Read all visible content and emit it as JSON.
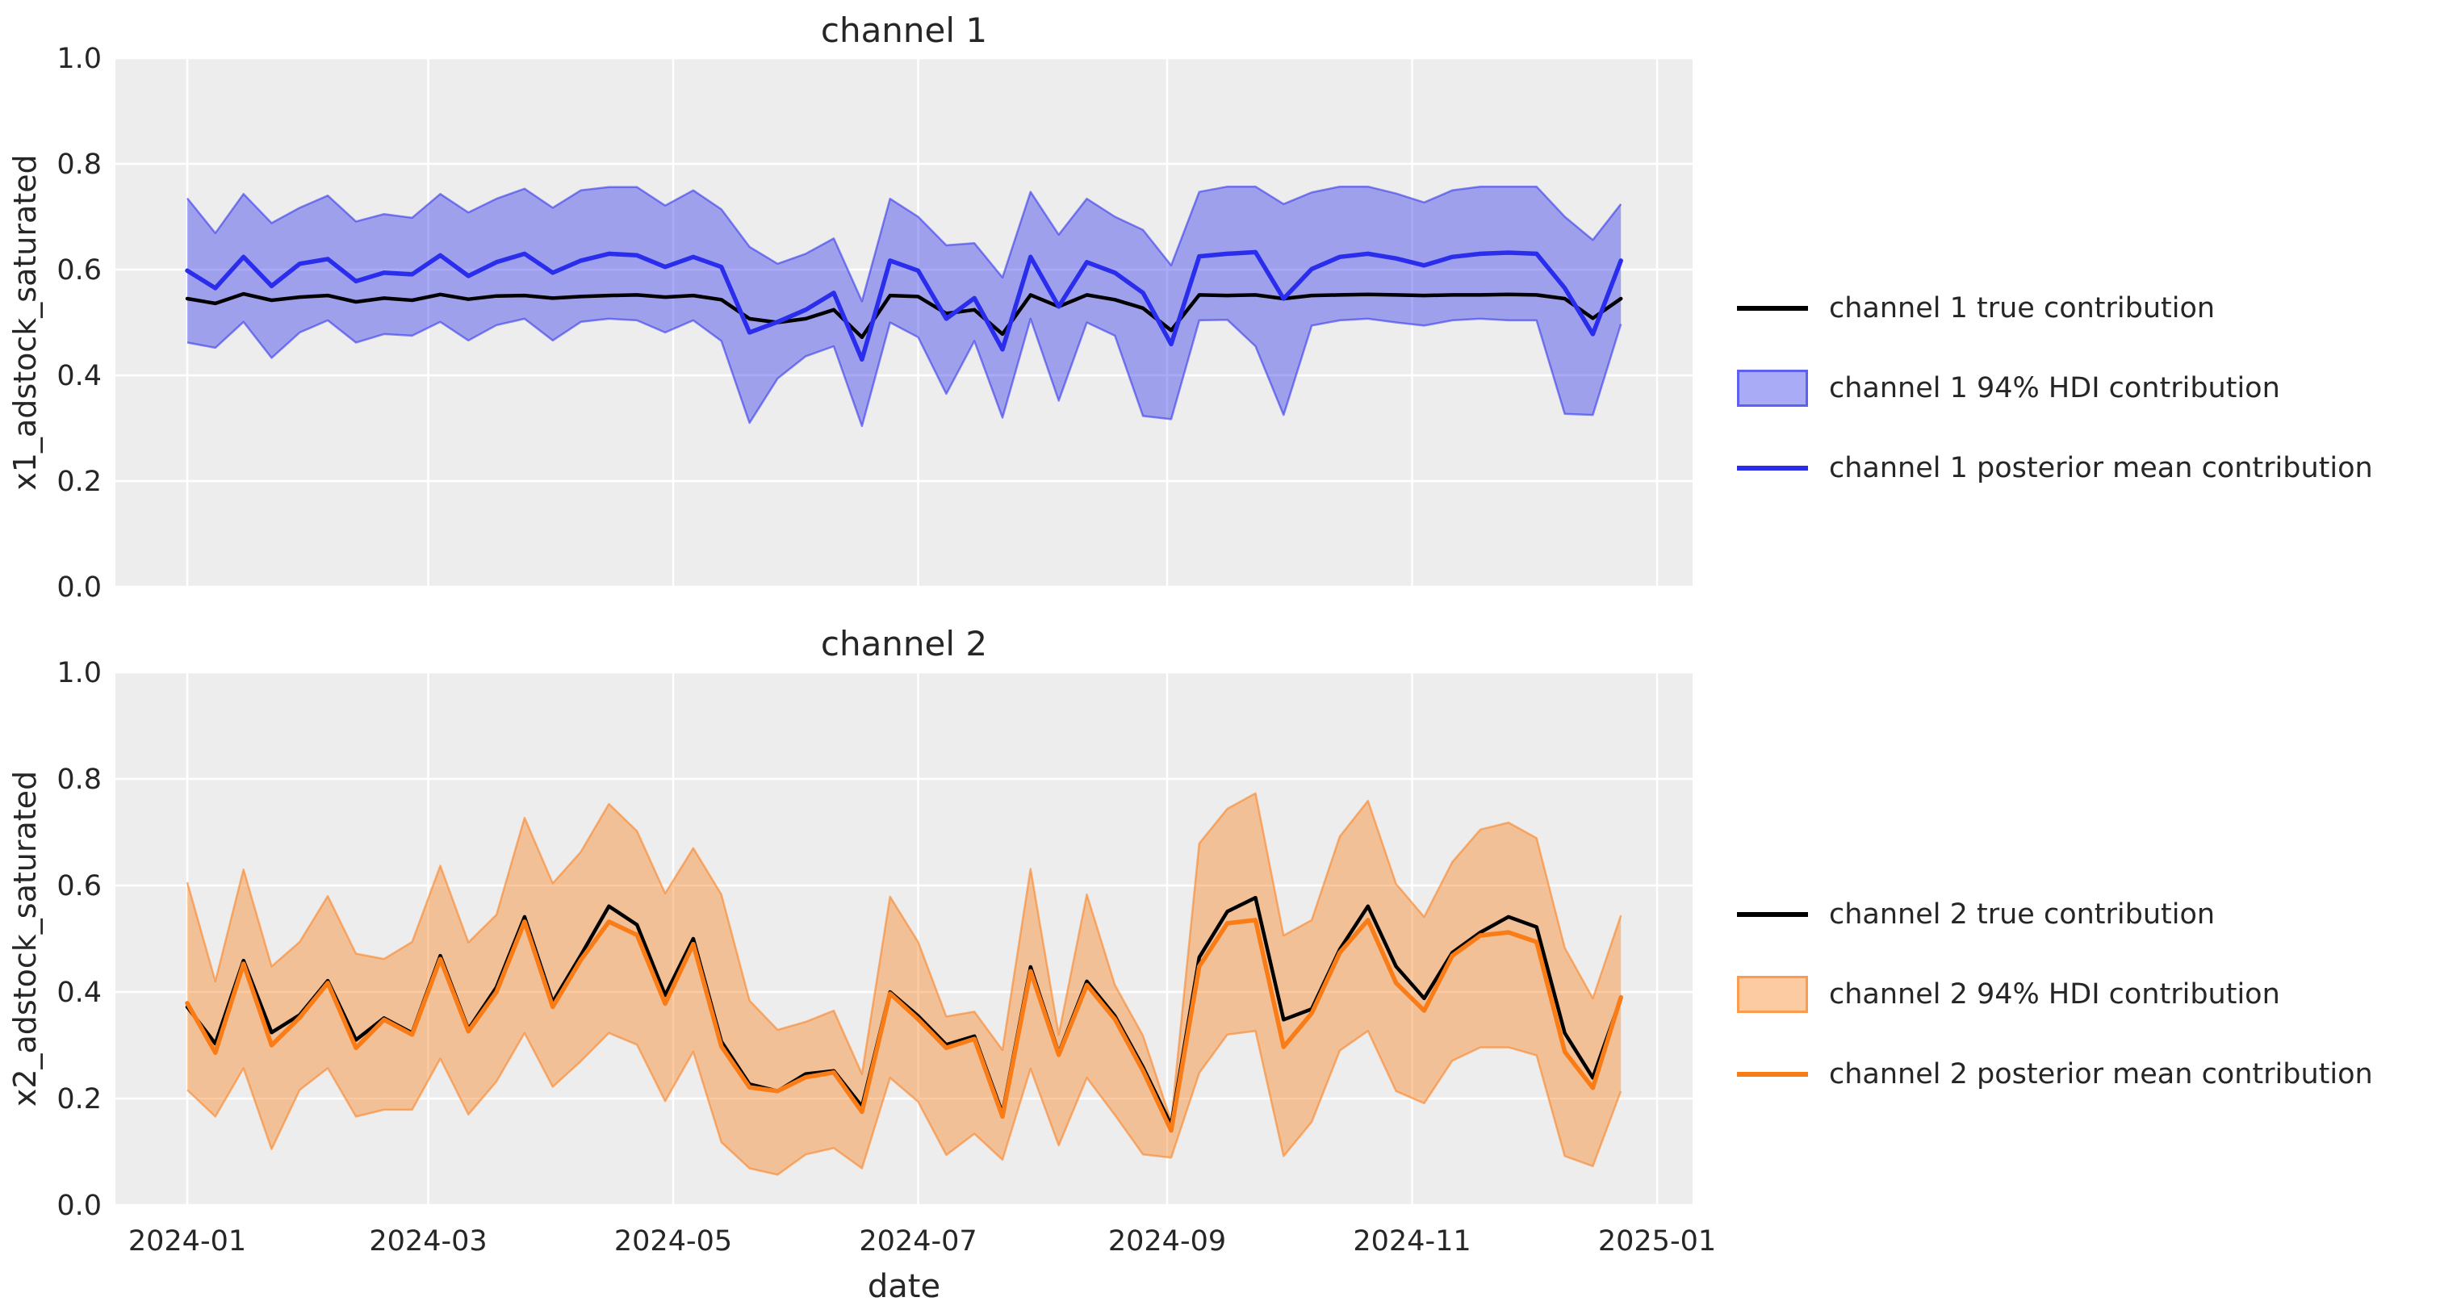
{
  "figure": {
    "background": "#ffffff",
    "plot_background": "#ededed",
    "grid_color": "#ffffff",
    "text_color": "#262626",
    "true_line_color": "#000000"
  },
  "chart_data": [
    {
      "type": "line",
      "title": "channel 1",
      "xlabel": "",
      "ylabel": "x1_adstock_saturated",
      "ylim": [
        0.0,
        1.0
      ],
      "grid": true,
      "legend_position": "right",
      "accent_color": "#2a2eec",
      "hdi_fill_opacity": 0.4,
      "x_start_date": "2024-01-01",
      "x_step_days": 7,
      "x_tick_labels": [
        "2024-01",
        "2024-03",
        "2024-05",
        "2024-07",
        "2024-09",
        "2024-11",
        "2025-01"
      ],
      "y_tick_labels": [
        "0.0",
        "0.2",
        "0.4",
        "0.6",
        "0.8",
        "1.0"
      ],
      "show_x_tick_labels": false,
      "series": [
        {
          "name": "channel 1 true contribution",
          "kind": "line",
          "color": "#000000",
          "values": [
            0.545,
            0.536,
            0.554,
            0.542,
            0.548,
            0.551,
            0.539,
            0.546,
            0.542,
            0.553,
            0.544,
            0.55,
            0.551,
            0.546,
            0.549,
            0.551,
            0.552,
            0.548,
            0.551,
            0.543,
            0.507,
            0.5,
            0.507,
            0.524,
            0.472,
            0.551,
            0.549,
            0.517,
            0.524,
            0.478,
            0.552,
            0.53,
            0.552,
            0.543,
            0.527,
            0.485,
            0.552,
            0.551,
            0.552,
            0.545,
            0.551,
            0.552,
            0.553,
            0.552,
            0.551,
            0.552,
            0.552,
            0.553,
            0.552,
            0.545,
            0.508,
            0.545
          ]
        },
        {
          "name": "channel 1 94% HDI contribution",
          "kind": "band",
          "color": "#2a2eec",
          "lower": [
            0.462,
            0.452,
            0.501,
            0.433,
            0.481,
            0.504,
            0.462,
            0.478,
            0.475,
            0.501,
            0.466,
            0.495,
            0.507,
            0.466,
            0.501,
            0.507,
            0.504,
            0.481,
            0.504,
            0.465,
            0.31,
            0.394,
            0.436,
            0.455,
            0.304,
            0.5,
            0.472,
            0.365,
            0.465,
            0.32,
            0.507,
            0.352,
            0.5,
            0.475,
            0.323,
            0.317,
            0.504,
            0.505,
            0.455,
            0.325,
            0.494,
            0.504,
            0.507,
            0.5,
            0.494,
            0.504,
            0.507,
            0.504,
            0.504,
            0.327,
            0.325,
            0.497
          ],
          "upper": [
            0.735,
            0.669,
            0.743,
            0.688,
            0.717,
            0.74,
            0.691,
            0.705,
            0.698,
            0.743,
            0.708,
            0.734,
            0.753,
            0.717,
            0.75,
            0.756,
            0.756,
            0.721,
            0.75,
            0.714,
            0.643,
            0.611,
            0.63,
            0.659,
            0.54,
            0.734,
            0.7,
            0.646,
            0.65,
            0.585,
            0.747,
            0.666,
            0.734,
            0.7,
            0.675,
            0.608,
            0.747,
            0.757,
            0.757,
            0.724,
            0.746,
            0.757,
            0.757,
            0.744,
            0.727,
            0.75,
            0.757,
            0.757,
            0.757,
            0.7,
            0.656,
            0.724
          ]
        },
        {
          "name": "channel 1 posterior mean contribution",
          "kind": "line",
          "color": "#2a2eec",
          "values": [
            0.598,
            0.565,
            0.624,
            0.569,
            0.611,
            0.62,
            0.578,
            0.594,
            0.591,
            0.627,
            0.588,
            0.614,
            0.63,
            0.594,
            0.617,
            0.63,
            0.627,
            0.605,
            0.624,
            0.605,
            0.481,
            0.501,
            0.524,
            0.556,
            0.43,
            0.617,
            0.598,
            0.507,
            0.546,
            0.449,
            0.624,
            0.53,
            0.614,
            0.594,
            0.556,
            0.459,
            0.625,
            0.63,
            0.633,
            0.545,
            0.601,
            0.624,
            0.63,
            0.621,
            0.608,
            0.624,
            0.63,
            0.632,
            0.63,
            0.565,
            0.478,
            0.617
          ]
        }
      ]
    },
    {
      "type": "line",
      "title": "channel 2",
      "xlabel": "date",
      "ylabel": "x2_adstock_saturated",
      "ylim": [
        0.0,
        1.0
      ],
      "grid": true,
      "legend_position": "right",
      "accent_color": "#fa7c17",
      "hdi_fill_opacity": 0.4,
      "x_start_date": "2024-01-01",
      "x_step_days": 7,
      "x_tick_labels": [
        "2024-01",
        "2024-03",
        "2024-05",
        "2024-07",
        "2024-09",
        "2024-11",
        "2025-01"
      ],
      "y_tick_labels": [
        "0.0",
        "0.2",
        "0.4",
        "0.6",
        "0.8",
        "1.0"
      ],
      "show_x_tick_labels": true,
      "series": [
        {
          "name": "channel 2 true contribution",
          "kind": "line",
          "color": "#000000",
          "values": [
            0.372,
            0.303,
            0.459,
            0.324,
            0.357,
            0.421,
            0.31,
            0.351,
            0.323,
            0.468,
            0.33,
            0.409,
            0.541,
            0.381,
            0.469,
            0.561,
            0.526,
            0.394,
            0.5,
            0.307,
            0.227,
            0.214,
            0.246,
            0.252,
            0.185,
            0.4,
            0.355,
            0.301,
            0.317,
            0.172,
            0.447,
            0.285,
            0.42,
            0.355,
            0.259,
            0.15,
            0.465,
            0.551,
            0.577,
            0.348,
            0.368,
            0.48,
            0.561,
            0.448,
            0.388,
            0.474,
            0.512,
            0.541,
            0.522,
            0.323,
            0.239,
            0.388
          ]
        },
        {
          "name": "channel 2 94% HDI contribution",
          "kind": "band",
          "color": "#fa7c17",
          "lower": [
            0.216,
            0.166,
            0.257,
            0.105,
            0.216,
            0.257,
            0.166,
            0.179,
            0.179,
            0.275,
            0.17,
            0.232,
            0.323,
            0.222,
            0.27,
            0.323,
            0.301,
            0.195,
            0.288,
            0.118,
            0.069,
            0.057,
            0.095,
            0.107,
            0.069,
            0.239,
            0.194,
            0.094,
            0.134,
            0.085,
            0.256,
            0.112,
            0.239,
            0.169,
            0.095,
            0.089,
            0.248,
            0.32,
            0.327,
            0.092,
            0.156,
            0.29,
            0.327,
            0.214,
            0.191,
            0.271,
            0.296,
            0.296,
            0.281,
            0.092,
            0.073,
            0.214
          ],
          "upper": [
            0.606,
            0.42,
            0.63,
            0.448,
            0.494,
            0.58,
            0.472,
            0.462,
            0.494,
            0.637,
            0.493,
            0.545,
            0.727,
            0.604,
            0.663,
            0.753,
            0.702,
            0.585,
            0.67,
            0.583,
            0.384,
            0.329,
            0.344,
            0.365,
            0.246,
            0.579,
            0.494,
            0.354,
            0.363,
            0.291,
            0.631,
            0.32,
            0.583,
            0.413,
            0.318,
            0.157,
            0.679,
            0.744,
            0.773,
            0.506,
            0.535,
            0.692,
            0.759,
            0.603,
            0.541,
            0.644,
            0.705,
            0.718,
            0.689,
            0.483,
            0.388,
            0.544
          ]
        },
        {
          "name": "channel 2 posterior mean contribution",
          "kind": "line",
          "color": "#fa7c17",
          "values": [
            0.379,
            0.286,
            0.453,
            0.3,
            0.352,
            0.417,
            0.295,
            0.348,
            0.32,
            0.462,
            0.326,
            0.4,
            0.532,
            0.372,
            0.46,
            0.532,
            0.507,
            0.378,
            0.49,
            0.298,
            0.221,
            0.214,
            0.24,
            0.249,
            0.175,
            0.397,
            0.349,
            0.295,
            0.312,
            0.166,
            0.439,
            0.282,
            0.413,
            0.349,
            0.252,
            0.14,
            0.448,
            0.529,
            0.535,
            0.297,
            0.36,
            0.474,
            0.535,
            0.417,
            0.365,
            0.468,
            0.506,
            0.512,
            0.494,
            0.288,
            0.22,
            0.39
          ]
        }
      ]
    }
  ]
}
